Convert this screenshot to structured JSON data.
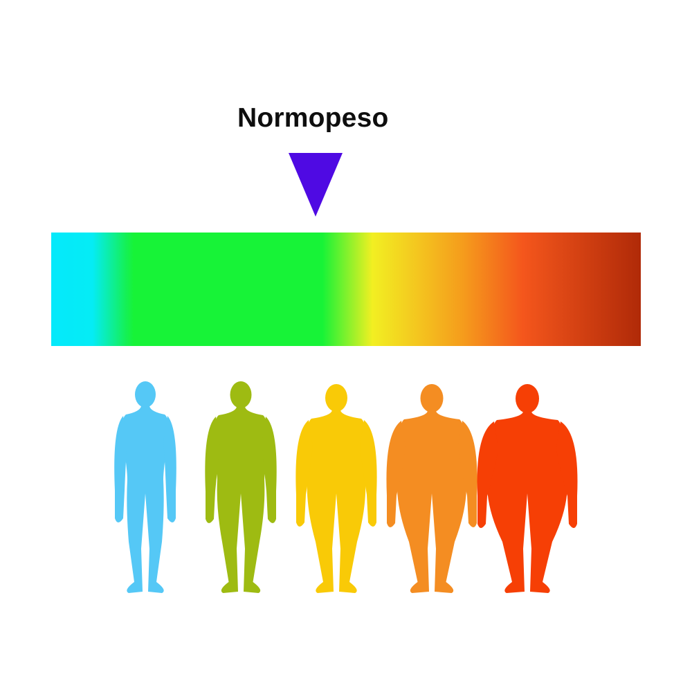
{
  "indicator": {
    "label": "Normopeso",
    "color": "#4f0ae3",
    "position_fraction": 0.45
  },
  "scale_bar": {
    "stops": [
      {
        "offset": 0.0,
        "color": "#05e9fb"
      },
      {
        "offset": 0.07,
        "color": "#05ecf5"
      },
      {
        "offset": 0.125,
        "color": "#14f05a"
      },
      {
        "offset": 0.14,
        "color": "#17f337"
      },
      {
        "offset": 0.46,
        "color": "#17f337"
      },
      {
        "offset": 0.545,
        "color": "#f2ef22"
      },
      {
        "offset": 0.7,
        "color": "#f59b1c"
      },
      {
        "offset": 0.8,
        "color": "#f4561c"
      },
      {
        "offset": 1.0,
        "color": "#b02a08"
      }
    ]
  },
  "body_types": [
    {
      "name": "underweight",
      "color": "#55c8f6"
    },
    {
      "name": "normal-weight",
      "color": "#9ebb12"
    },
    {
      "name": "overweight",
      "color": "#f9ca07"
    },
    {
      "name": "obese",
      "color": "#f48d22"
    },
    {
      "name": "severely-obese",
      "color": "#f63f05"
    }
  ]
}
